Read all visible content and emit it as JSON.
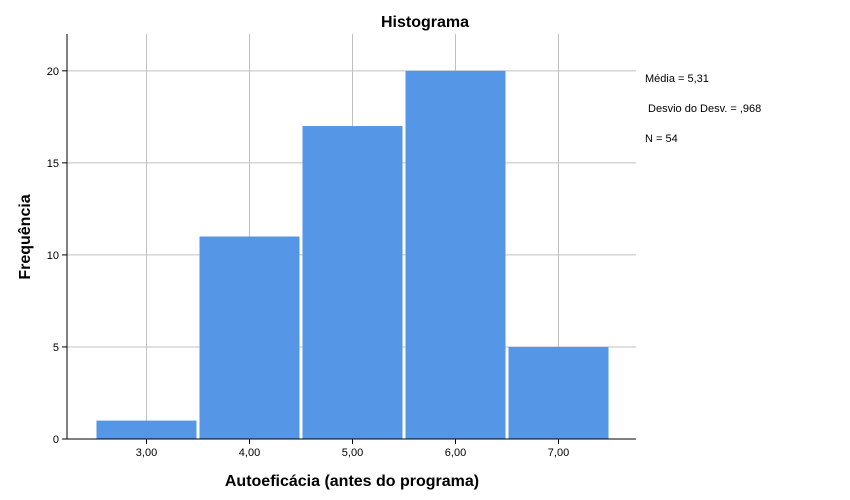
{
  "chart_data": {
    "type": "bar",
    "title": "Histograma",
    "xlabel": "Autoeficácia (antes do programa)",
    "ylabel": "Frequência",
    "categories": [
      "3,00",
      "4,00",
      "5,00",
      "6,00",
      "7,00"
    ],
    "values": [
      1,
      11,
      17,
      20,
      5
    ],
    "ylim": [
      0,
      22
    ],
    "yticks": [
      0,
      5,
      10,
      15,
      20
    ],
    "grid": true,
    "bar_color": "#5596E6",
    "annotations": [
      "Média = 5,31",
      " Desvio do Desv. = ,968",
      "N = 54"
    ]
  }
}
